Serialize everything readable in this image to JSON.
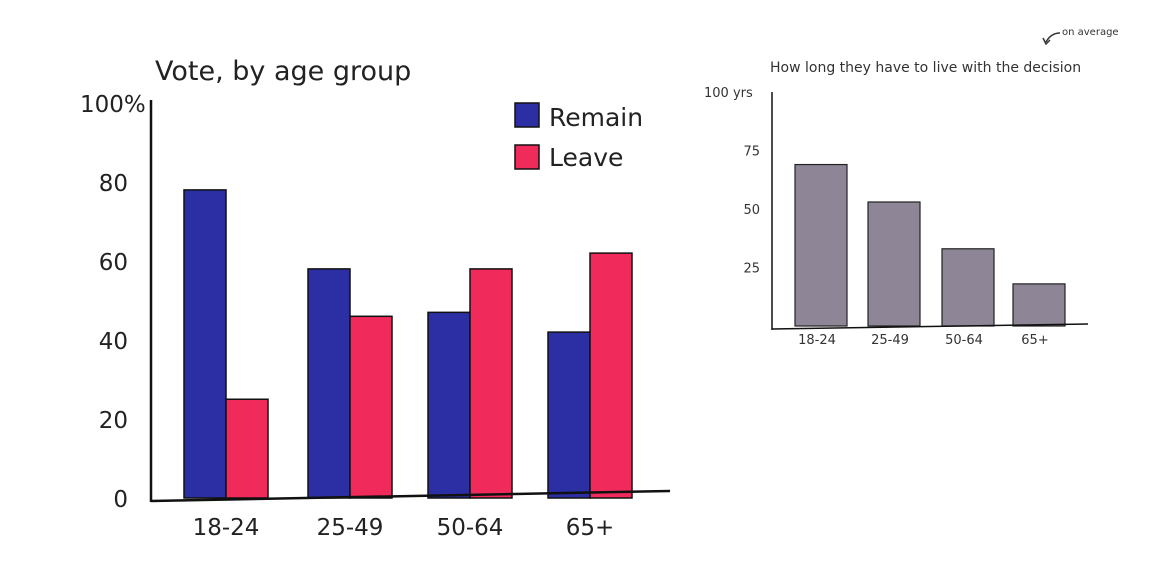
{
  "chart_data": [
    {
      "type": "bar",
      "title": "Vote, by age group",
      "categories": [
        "18-24",
        "25-49",
        "50-64",
        "65+"
      ],
      "series": [
        {
          "name": "Remain",
          "color": "#2b2fa3",
          "values": [
            78,
            58,
            47,
            42
          ]
        },
        {
          "name": "Leave",
          "color": "#f02a5a",
          "values": [
            25,
            46,
            58,
            62
          ]
        }
      ],
      "ylim": [
        0,
        100
      ],
      "yticks": [
        "0",
        "20",
        "40",
        "60",
        "80",
        "100%"
      ],
      "legend": "top-right",
      "grid": false
    },
    {
      "type": "bar",
      "title": "How long they have to live with the decision",
      "annotation": "on average",
      "categories": [
        "18-24",
        "25-49",
        "50-64",
        "65+"
      ],
      "series": [
        {
          "color": "#8e8696",
          "values": [
            69,
            53,
            33,
            18
          ]
        }
      ],
      "ylim": [
        0,
        100
      ],
      "yticks": [
        "25",
        "50",
        "75",
        "100 yrs"
      ],
      "grid": false
    }
  ]
}
